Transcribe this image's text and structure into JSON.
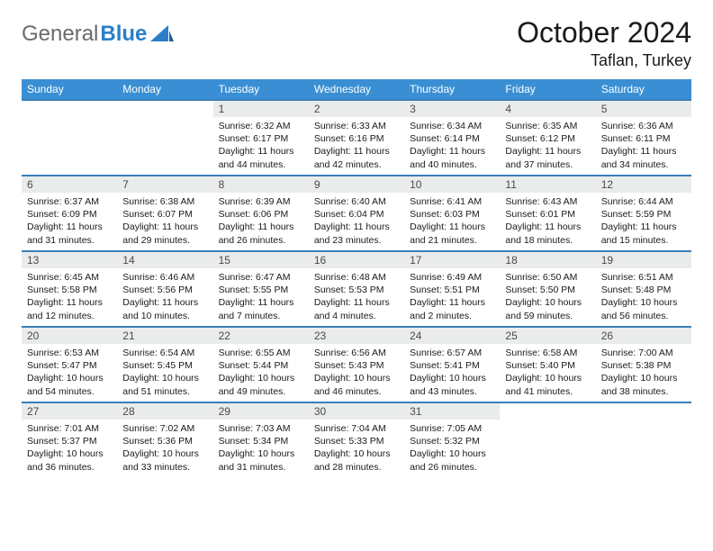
{
  "logo": {
    "part1": "General",
    "part2": "Blue"
  },
  "title": "October 2024",
  "location": "Taflan, Turkey",
  "colors": {
    "header_bg": "#3a8fd4",
    "header_text": "#ffffff",
    "row_border": "#3a7fb8",
    "daynum_bg": "#e9eceb",
    "daynum_text": "#4a4a4a",
    "body_text": "#1a1a1a",
    "logo_gray": "#6a6a6a",
    "logo_blue": "#2a7fc9"
  },
  "typography": {
    "title_fontsize": 32,
    "location_fontsize": 18,
    "dayheader_fontsize": 12,
    "cell_fontsize": 10.5
  },
  "day_headers": [
    "Sunday",
    "Monday",
    "Tuesday",
    "Wednesday",
    "Thursday",
    "Friday",
    "Saturday"
  ],
  "weeks": [
    [
      null,
      null,
      {
        "n": "1",
        "sr": "6:32 AM",
        "ss": "6:17 PM",
        "dl": "11 hours and 44 minutes."
      },
      {
        "n": "2",
        "sr": "6:33 AM",
        "ss": "6:16 PM",
        "dl": "11 hours and 42 minutes."
      },
      {
        "n": "3",
        "sr": "6:34 AM",
        "ss": "6:14 PM",
        "dl": "11 hours and 40 minutes."
      },
      {
        "n": "4",
        "sr": "6:35 AM",
        "ss": "6:12 PM",
        "dl": "11 hours and 37 minutes."
      },
      {
        "n": "5",
        "sr": "6:36 AM",
        "ss": "6:11 PM",
        "dl": "11 hours and 34 minutes."
      }
    ],
    [
      {
        "n": "6",
        "sr": "6:37 AM",
        "ss": "6:09 PM",
        "dl": "11 hours and 31 minutes."
      },
      {
        "n": "7",
        "sr": "6:38 AM",
        "ss": "6:07 PM",
        "dl": "11 hours and 29 minutes."
      },
      {
        "n": "8",
        "sr": "6:39 AM",
        "ss": "6:06 PM",
        "dl": "11 hours and 26 minutes."
      },
      {
        "n": "9",
        "sr": "6:40 AM",
        "ss": "6:04 PM",
        "dl": "11 hours and 23 minutes."
      },
      {
        "n": "10",
        "sr": "6:41 AM",
        "ss": "6:03 PM",
        "dl": "11 hours and 21 minutes."
      },
      {
        "n": "11",
        "sr": "6:43 AM",
        "ss": "6:01 PM",
        "dl": "11 hours and 18 minutes."
      },
      {
        "n": "12",
        "sr": "6:44 AM",
        "ss": "5:59 PM",
        "dl": "11 hours and 15 minutes."
      }
    ],
    [
      {
        "n": "13",
        "sr": "6:45 AM",
        "ss": "5:58 PM",
        "dl": "11 hours and 12 minutes."
      },
      {
        "n": "14",
        "sr": "6:46 AM",
        "ss": "5:56 PM",
        "dl": "11 hours and 10 minutes."
      },
      {
        "n": "15",
        "sr": "6:47 AM",
        "ss": "5:55 PM",
        "dl": "11 hours and 7 minutes."
      },
      {
        "n": "16",
        "sr": "6:48 AM",
        "ss": "5:53 PM",
        "dl": "11 hours and 4 minutes."
      },
      {
        "n": "17",
        "sr": "6:49 AM",
        "ss": "5:51 PM",
        "dl": "11 hours and 2 minutes."
      },
      {
        "n": "18",
        "sr": "6:50 AM",
        "ss": "5:50 PM",
        "dl": "10 hours and 59 minutes."
      },
      {
        "n": "19",
        "sr": "6:51 AM",
        "ss": "5:48 PM",
        "dl": "10 hours and 56 minutes."
      }
    ],
    [
      {
        "n": "20",
        "sr": "6:53 AM",
        "ss": "5:47 PM",
        "dl": "10 hours and 54 minutes."
      },
      {
        "n": "21",
        "sr": "6:54 AM",
        "ss": "5:45 PM",
        "dl": "10 hours and 51 minutes."
      },
      {
        "n": "22",
        "sr": "6:55 AM",
        "ss": "5:44 PM",
        "dl": "10 hours and 49 minutes."
      },
      {
        "n": "23",
        "sr": "6:56 AM",
        "ss": "5:43 PM",
        "dl": "10 hours and 46 minutes."
      },
      {
        "n": "24",
        "sr": "6:57 AM",
        "ss": "5:41 PM",
        "dl": "10 hours and 43 minutes."
      },
      {
        "n": "25",
        "sr": "6:58 AM",
        "ss": "5:40 PM",
        "dl": "10 hours and 41 minutes."
      },
      {
        "n": "26",
        "sr": "7:00 AM",
        "ss": "5:38 PM",
        "dl": "10 hours and 38 minutes."
      }
    ],
    [
      {
        "n": "27",
        "sr": "7:01 AM",
        "ss": "5:37 PM",
        "dl": "10 hours and 36 minutes."
      },
      {
        "n": "28",
        "sr": "7:02 AM",
        "ss": "5:36 PM",
        "dl": "10 hours and 33 minutes."
      },
      {
        "n": "29",
        "sr": "7:03 AM",
        "ss": "5:34 PM",
        "dl": "10 hours and 31 minutes."
      },
      {
        "n": "30",
        "sr": "7:04 AM",
        "ss": "5:33 PM",
        "dl": "10 hours and 28 minutes."
      },
      {
        "n": "31",
        "sr": "7:05 AM",
        "ss": "5:32 PM",
        "dl": "10 hours and 26 minutes."
      },
      null,
      null
    ]
  ],
  "labels": {
    "sunrise": "Sunrise:",
    "sunset": "Sunset:",
    "daylight": "Daylight:"
  }
}
